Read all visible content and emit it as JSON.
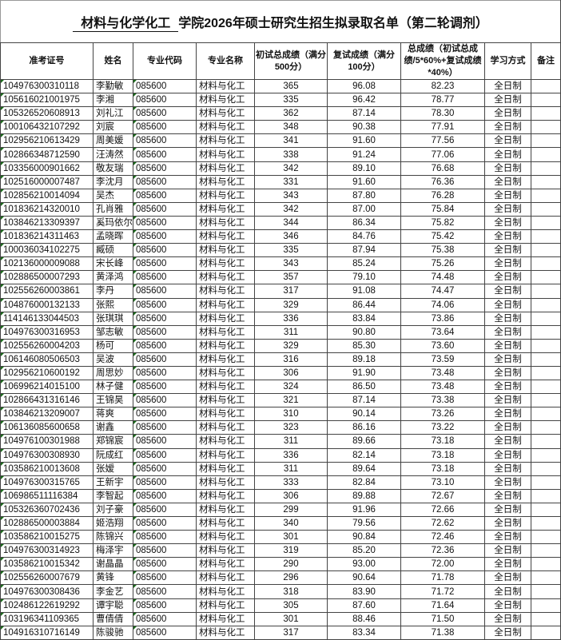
{
  "title": {
    "major_blank": "材料与化学化工",
    "rest": "学院2026年硕士研究生招生拟录取名单（第二轮调剂）"
  },
  "headers": [
    "准考证号",
    "姓名",
    "专业代码",
    "专业名称",
    "初试总成绩（满分500分）",
    "复试成绩（满分100分）",
    "总成绩（初试总成绩/5*60%+复试成绩*40%）",
    "学习方式",
    "备注"
  ],
  "rows": [
    [
      "104976300310118",
      "李勤敏",
      "085600",
      "材料与化工",
      "365",
      "96.08",
      "82.23",
      "全日制",
      ""
    ],
    [
      "105616021001975",
      "李湘",
      "085600",
      "材料与化工",
      "335",
      "96.42",
      "78.77",
      "全日制",
      ""
    ],
    [
      "105326520608913",
      "刘礼江",
      "085600",
      "材料与化工",
      "362",
      "87.14",
      "78.30",
      "全日制",
      ""
    ],
    [
      "100106432107292",
      "刘宸",
      "085600",
      "材料与化工",
      "348",
      "90.38",
      "77.91",
      "全日制",
      ""
    ],
    [
      "102956210613429",
      "周美媛",
      "085600",
      "材料与化工",
      "341",
      "91.60",
      "77.56",
      "全日制",
      ""
    ],
    [
      "102866348712590",
      "汪涛然",
      "085600",
      "材料与化工",
      "338",
      "91.24",
      "77.06",
      "全日制",
      ""
    ],
    [
      "103356000901662",
      "敬友瑞",
      "085600",
      "材料与化工",
      "342",
      "89.10",
      "76.68",
      "全日制",
      ""
    ],
    [
      "102516000007487",
      "李沈月",
      "085600",
      "材料与化工",
      "331",
      "91.60",
      "76.36",
      "全日制",
      ""
    ],
    [
      "102856210014094",
      "吴杰",
      "085600",
      "材料与化工",
      "343",
      "87.80",
      "76.28",
      "全日制",
      ""
    ],
    [
      "101836214320010",
      "孔肖雅",
      "085600",
      "材料与化工",
      "342",
      "87.00",
      "75.84",
      "全日制",
      ""
    ],
    [
      "103846213309397",
      "奚玛依尔",
      "085600",
      "材料与化工",
      "344",
      "86.34",
      "75.82",
      "全日制",
      ""
    ],
    [
      "101836214311463",
      "孟晓晖",
      "085600",
      "材料与化工",
      "346",
      "84.76",
      "75.42",
      "全日制",
      ""
    ],
    [
      "100036034102275",
      "臧硕",
      "085600",
      "材料与化工",
      "335",
      "87.94",
      "75.38",
      "全日制",
      ""
    ],
    [
      "102136000009088",
      "宋长峰",
      "085600",
      "材料与化工",
      "343",
      "85.24",
      "75.26",
      "全日制",
      ""
    ],
    [
      "102886500007293",
      "黄泽鸿",
      "085600",
      "材料与化工",
      "357",
      "79.10",
      "74.48",
      "全日制",
      ""
    ],
    [
      "102556260003861",
      "李丹",
      "085600",
      "材料与化工",
      "317",
      "91.08",
      "74.47",
      "全日制",
      ""
    ],
    [
      "104876000132133",
      "张熙",
      "085600",
      "材料与化工",
      "329",
      "86.44",
      "74.06",
      "全日制",
      ""
    ],
    [
      "114146133044503",
      "张琪琪",
      "085600",
      "材料与化工",
      "336",
      "83.84",
      "73.86",
      "全日制",
      ""
    ],
    [
      "104976300316953",
      "邹志敏",
      "085600",
      "材料与化工",
      "311",
      "90.80",
      "73.64",
      "全日制",
      ""
    ],
    [
      "102556260004203",
      "杨可",
      "085600",
      "材料与化工",
      "329",
      "85.30",
      "73.60",
      "全日制",
      ""
    ],
    [
      "106146080506503",
      "吴波",
      "085600",
      "材料与化工",
      "316",
      "89.18",
      "73.59",
      "全日制",
      ""
    ],
    [
      "102956210600192",
      "周思妙",
      "085600",
      "材料与化工",
      "306",
      "91.90",
      "73.48",
      "全日制",
      ""
    ],
    [
      "106996214015100",
      "林子健",
      "085600",
      "材料与化工",
      "324",
      "86.50",
      "73.48",
      "全日制",
      ""
    ],
    [
      "102866431316146",
      "王锦昊",
      "085600",
      "材料与化工",
      "321",
      "87.14",
      "73.38",
      "全日制",
      ""
    ],
    [
      "103846213209007",
      "蒋爽",
      "085600",
      "材料与化工",
      "310",
      "90.14",
      "73.26",
      "全日制",
      ""
    ],
    [
      "106136085600658",
      "谢鑫",
      "085600",
      "材料与化工",
      "323",
      "86.16",
      "73.22",
      "全日制",
      ""
    ],
    [
      "104976100301988",
      "郑锦宸",
      "085600",
      "材料与化工",
      "311",
      "89.66",
      "73.18",
      "全日制",
      ""
    ],
    [
      "104976300308930",
      "阮成红",
      "085600",
      "材料与化工",
      "336",
      "82.14",
      "73.18",
      "全日制",
      ""
    ],
    [
      "103586210013608",
      "张嫒",
      "085600",
      "材料与化工",
      "311",
      "89.64",
      "73.18",
      "全日制",
      ""
    ],
    [
      "104976300315765",
      "王新宇",
      "085600",
      "材料与化工",
      "333",
      "82.84",
      "73.10",
      "全日制",
      ""
    ],
    [
      "106986511116384",
      "李智起",
      "085600",
      "材料与化工",
      "306",
      "89.88",
      "72.67",
      "全日制",
      ""
    ],
    [
      "105326360702436",
      "刘子豪",
      "085600",
      "材料与化工",
      "299",
      "91.96",
      "72.66",
      "全日制",
      ""
    ],
    [
      "102886500003884",
      "姬浩翔",
      "085600",
      "材料与化工",
      "340",
      "79.56",
      "72.62",
      "全日制",
      ""
    ],
    [
      "103586210015275",
      "陈锦兴",
      "085600",
      "材料与化工",
      "301",
      "90.84",
      "72.46",
      "全日制",
      ""
    ],
    [
      "104976300314923",
      "梅泽宇",
      "085600",
      "材料与化工",
      "319",
      "85.20",
      "72.36",
      "全日制",
      ""
    ],
    [
      "103586210015342",
      "谢晶晶",
      "085600",
      "材料与化工",
      "290",
      "93.00",
      "72.00",
      "全日制",
      ""
    ],
    [
      "102556260007679",
      "黄锋",
      "085600",
      "材料与化工",
      "296",
      "90.64",
      "71.78",
      "全日制",
      ""
    ],
    [
      "104976300308436",
      "李金艺",
      "085600",
      "材料与化工",
      "318",
      "83.90",
      "71.72",
      "全日制",
      ""
    ],
    [
      "102486122619292",
      "谭宇聪",
      "085600",
      "材料与化工",
      "305",
      "87.60",
      "71.64",
      "全日制",
      ""
    ],
    [
      "103196341109365",
      "曹倩倩",
      "085600",
      "材料与化工",
      "301",
      "88.46",
      "71.50",
      "全日制",
      ""
    ],
    [
      "104916310716149",
      "陈骏驰",
      "085600",
      "材料与化工",
      "317",
      "83.34",
      "71.38",
      "全日制",
      ""
    ]
  ]
}
